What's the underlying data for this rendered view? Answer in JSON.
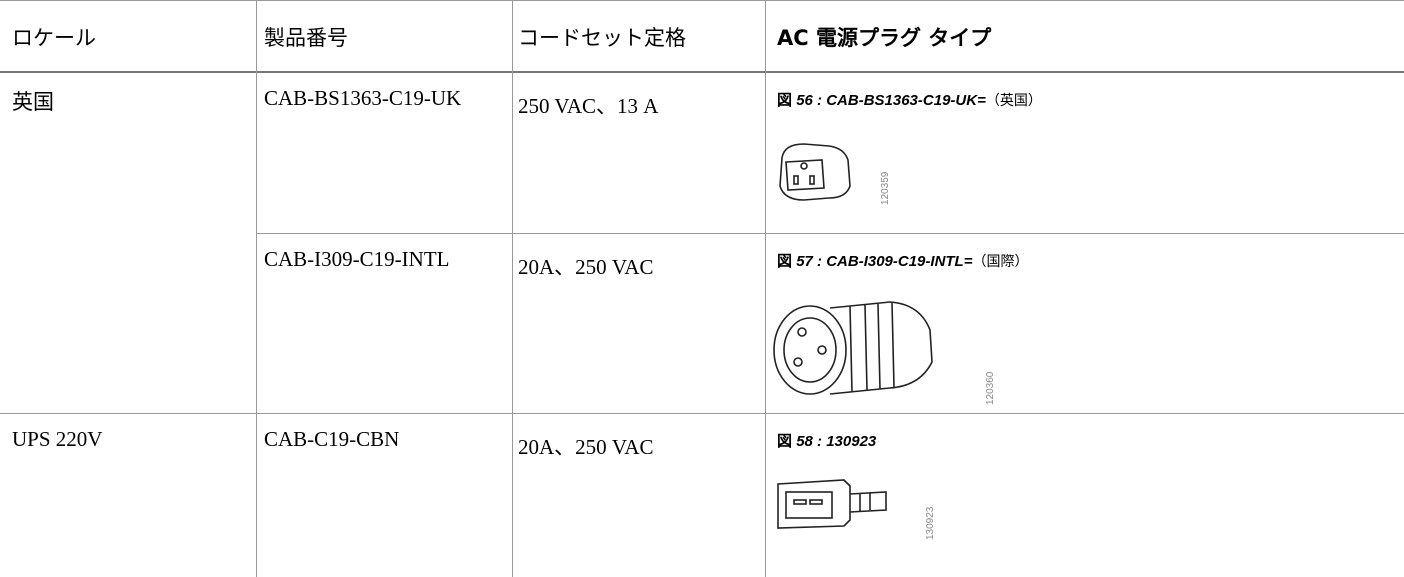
{
  "table": {
    "headers": [
      "ロケール",
      "製品番号",
      "コードセット定格",
      "AC 電源プラグ タイプ"
    ],
    "rows": [
      {
        "locale": "英国",
        "part": "CAB-BS1363-C19-UK",
        "rating": "250 VAC、13 A",
        "figure": {
          "prefix": "図",
          "number": "56 : CAB-BS1363-C19-UK=",
          "suffix": "（英国）",
          "id": "120359"
        }
      },
      {
        "part": "CAB-I309-C19-INTL",
        "rating": "20A、250 VAC",
        "figure": {
          "prefix": "図",
          "number": "57 : CAB-I309-C19-INTL=",
          "suffix": "（国際）",
          "id": "120360"
        }
      },
      {
        "locale": "UPS 220V",
        "part": "CAB-C19-CBN",
        "rating": "20A、250 VAC",
        "figure": {
          "prefix": "図",
          "number": "58 : 130923",
          "id": "130923"
        }
      }
    ]
  }
}
